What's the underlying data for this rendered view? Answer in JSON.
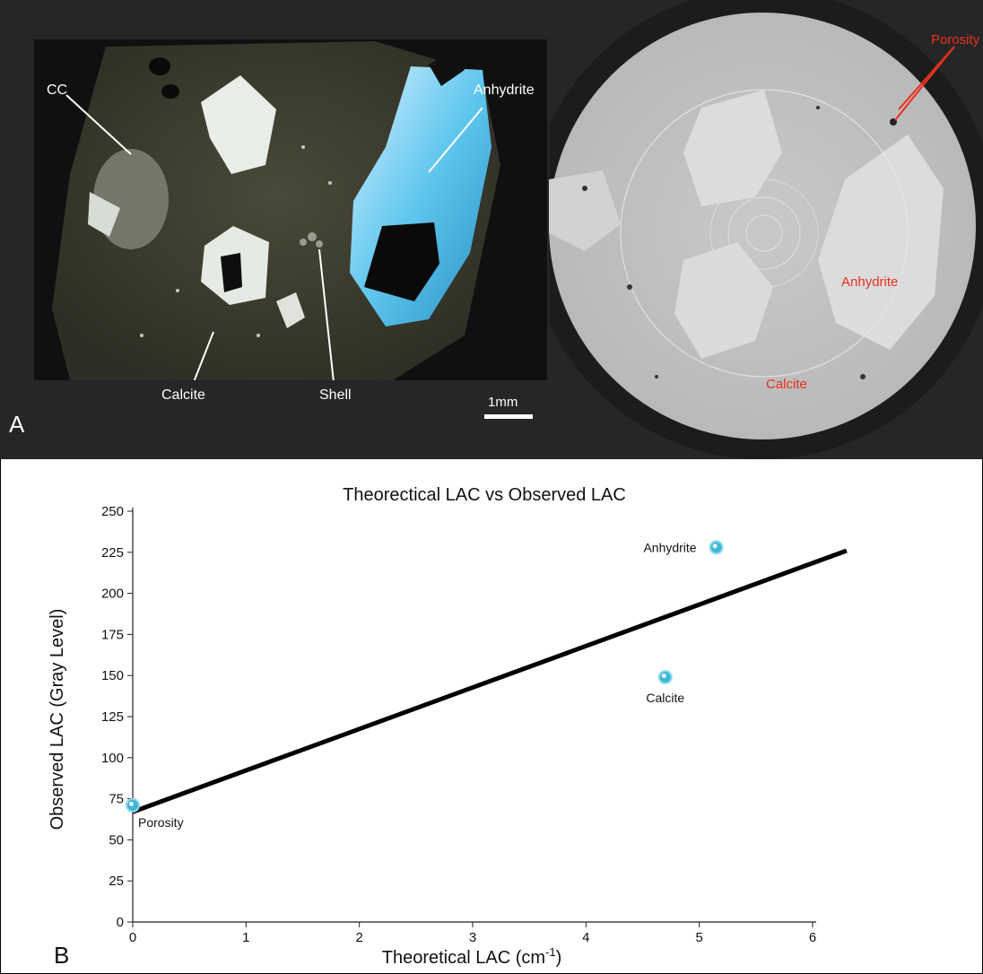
{
  "panel_a": {
    "letter": "A",
    "thin_section_labels": {
      "cc": "CC",
      "anhydrite": "Anhydrite",
      "calcite": "Calcite",
      "shell": "Shell"
    },
    "scale_bar": "1mm",
    "ct_labels": {
      "porosity": "Porosity",
      "anhydrite": "Anhydrite",
      "calcite": "Calcite"
    }
  },
  "panel_b": {
    "letter": "B"
  },
  "colors": {
    "label_red": "#e8311f",
    "point": "#3fb6d6",
    "fit_line": "#000000"
  },
  "chart_data": {
    "type": "scatter",
    "title": "Theorectical LAC vs Observed LAC",
    "xlabel": "Theoretical LAC (cm",
    "xlabel_sup": "-1",
    "xlabel_end": ")",
    "ylabel": "Observed LAC (Gray Level)",
    "xlim": [
      0,
      6
    ],
    "ylim": [
      0,
      250
    ],
    "xticks": [
      0,
      1,
      2,
      3,
      4,
      5,
      6
    ],
    "yticks": [
      0,
      25,
      50,
      75,
      100,
      125,
      150,
      175,
      200,
      225,
      250
    ],
    "points": [
      {
        "label": "Porosity",
        "x": 0,
        "y": 71
      },
      {
        "label": "Calcite",
        "x": 4.7,
        "y": 149
      },
      {
        "label": "Anhydrite",
        "x": 5.15,
        "y": 228
      }
    ],
    "fit_line": {
      "x": [
        0,
        6.3
      ],
      "y": [
        67,
        226
      ]
    },
    "grid": false
  }
}
